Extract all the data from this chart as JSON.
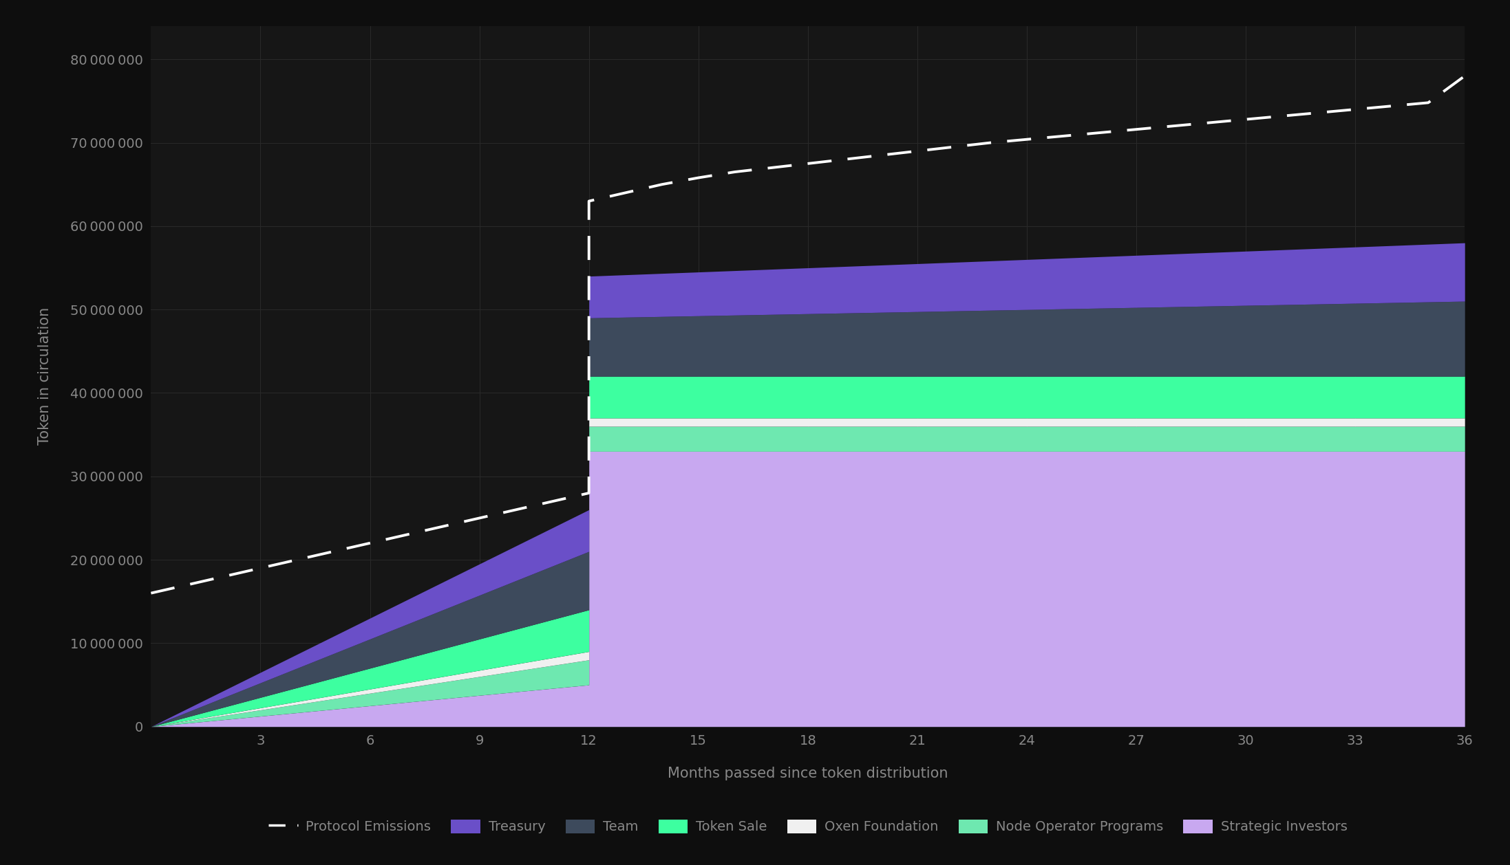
{
  "background_color": "#0e0e0e",
  "plot_bg_color": "#161616",
  "grid_color": "#2a2a2a",
  "text_color": "#888888",
  "xlabel": "Months passed since token distribution",
  "ylabel": "Token in circulation",
  "xlim": [
    0,
    36
  ],
  "ylim": [
    0,
    84000000
  ],
  "xticks": [
    3,
    6,
    9,
    12,
    15,
    18,
    21,
    24,
    27,
    30,
    33,
    36
  ],
  "yticks": [
    0,
    10000000,
    20000000,
    30000000,
    40000000,
    50000000,
    60000000,
    70000000,
    80000000
  ],
  "months": [
    0,
    1,
    2,
    3,
    4,
    5,
    6,
    7,
    8,
    9,
    10,
    11,
    12,
    12.001,
    13,
    14,
    15,
    16,
    17,
    18,
    19,
    20,
    21,
    22,
    23,
    24,
    25,
    26,
    27,
    28,
    29,
    30,
    31,
    32,
    33,
    34,
    35,
    36
  ],
  "strategic_investors": [
    0,
    416667,
    833333,
    1250000,
    1666667,
    2083333,
    2500000,
    2916667,
    3333333,
    3750000,
    4166667,
    4583333,
    5000000,
    33000000,
    33000000,
    33000000,
    33000000,
    33000000,
    33000000,
    33000000,
    33000000,
    33000000,
    33000000,
    33000000,
    33000000,
    33000000,
    33000000,
    33000000,
    33000000,
    33000000,
    33000000,
    33000000,
    33000000,
    33000000,
    33000000,
    33000000,
    33000000,
    33000000
  ],
  "node_operator_programs": [
    0,
    250000,
    500000,
    750000,
    1000000,
    1250000,
    1500000,
    1750000,
    2000000,
    2250000,
    2500000,
    2750000,
    3000000,
    3000000,
    3000000,
    3000000,
    3000000,
    3000000,
    3000000,
    3000000,
    3000000,
    3000000,
    3000000,
    3000000,
    3000000,
    3000000,
    3000000,
    3000000,
    3000000,
    3000000,
    3000000,
    3000000,
    3000000,
    3000000,
    3000000,
    3000000,
    3000000,
    3000000
  ],
  "oxen_foundation": [
    0,
    83333,
    166667,
    250000,
    333333,
    416667,
    500000,
    583333,
    666667,
    750000,
    833333,
    916667,
    1000000,
    1000000,
    1000000,
    1000000,
    1000000,
    1000000,
    1000000,
    1000000,
    1000000,
    1000000,
    1000000,
    1000000,
    1000000,
    1000000,
    1000000,
    1000000,
    1000000,
    1000000,
    1000000,
    1000000,
    1000000,
    1000000,
    1000000,
    1000000,
    1000000,
    1000000
  ],
  "token_sale": [
    0,
    416667,
    833333,
    1250000,
    1666667,
    2083333,
    2500000,
    2916667,
    3333333,
    3750000,
    4166667,
    4583333,
    5000000,
    5000000,
    5000000,
    5000000,
    5000000,
    5000000,
    5000000,
    5000000,
    5000000,
    5000000,
    5000000,
    5000000,
    5000000,
    5000000,
    5000000,
    5000000,
    5000000,
    5000000,
    5000000,
    5000000,
    5000000,
    5000000,
    5000000,
    5000000,
    5000000,
    5000000
  ],
  "team": [
    0,
    583333,
    1166667,
    1750000,
    2333333,
    2916667,
    3500000,
    4083333,
    4666667,
    5250000,
    5833333,
    6416667,
    7000000,
    7000000,
    7083333,
    7166667,
    7250000,
    7333333,
    7416667,
    7500000,
    7583333,
    7666667,
    7750000,
    7833333,
    7916667,
    8000000,
    8083333,
    8166667,
    8250000,
    8333333,
    8416667,
    8500000,
    8583333,
    8666667,
    8750000,
    8833333,
    8916667,
    9000000
  ],
  "treasury": [
    0,
    416667,
    833333,
    1250000,
    1666667,
    2083333,
    2500000,
    2916667,
    3333333,
    3750000,
    4166667,
    4583333,
    5000000,
    5000000,
    5083333,
    5166667,
    5250000,
    5333333,
    5416667,
    5500000,
    5583333,
    5666667,
    5750000,
    5833333,
    5916667,
    6000000,
    6083333,
    6166667,
    6250000,
    6333333,
    6416667,
    6500000,
    6583333,
    6666667,
    6750000,
    6833333,
    6916667,
    7000000
  ],
  "protocol_emissions": [
    16000000,
    17000000,
    18000000,
    19000000,
    20000000,
    21000000,
    22000000,
    23000000,
    24000000,
    25000000,
    26000000,
    27000000,
    28000000,
    63000000,
    64000000,
    65000000,
    65800000,
    66500000,
    67000000,
    67500000,
    68000000,
    68500000,
    69000000,
    69500000,
    70000000,
    70400000,
    70800000,
    71200000,
    71600000,
    72000000,
    72400000,
    72800000,
    73200000,
    73600000,
    74000000,
    74400000,
    74800000,
    78000000
  ],
  "colors": {
    "strategic_investors": "#c8a8f0",
    "node_operator_programs": "#6ee8b0",
    "oxen_foundation": "#f0f0f0",
    "token_sale": "#3dffa0",
    "team": "#3d4a5c",
    "treasury": "#6a4fc8"
  }
}
